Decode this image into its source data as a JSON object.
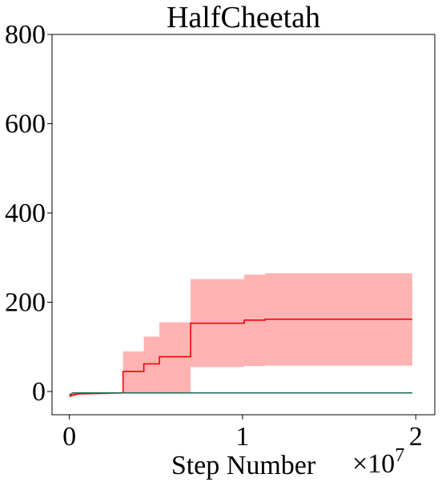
{
  "chart_data": {
    "type": "line",
    "title": "HalfCheetah",
    "x_label": "Step Number",
    "x_offset": {
      "base": "×10",
      "exponent": "7"
    },
    "xlim": [
      -0.1,
      2.11
    ],
    "xticks": [
      0,
      1,
      2
    ],
    "ylim": [
      -52,
      800
    ],
    "yticks": [
      0,
      200,
      400,
      600,
      800
    ],
    "series": [
      {
        "color": "#ff0000",
        "band_color": "#ffb3b3",
        "x": [
          0,
          0.05,
          0.31,
          0.31,
          0.43,
          0.43,
          0.52,
          0.52,
          0.7,
          0.7,
          1.01,
          1.01,
          1.13,
          1.13,
          1.98
        ],
        "values": [
          -10,
          -5,
          -3,
          45,
          45,
          62,
          62,
          78,
          78,
          153,
          153,
          160,
          160,
          162,
          162
        ],
        "upper": [
          -5,
          -3,
          -2,
          90,
          90,
          123,
          123,
          155,
          155,
          252,
          252,
          262,
          262,
          265,
          265
        ],
        "lower": [
          -14,
          -8,
          -5,
          -3,
          -3,
          -3,
          -3,
          -3,
          -3,
          55,
          55,
          57,
          57,
          58,
          58
        ]
      },
      {
        "color": "#1f6f5f",
        "x": [
          0,
          0.02,
          1.98
        ],
        "values": [
          -8,
          -3,
          -3
        ]
      }
    ]
  }
}
